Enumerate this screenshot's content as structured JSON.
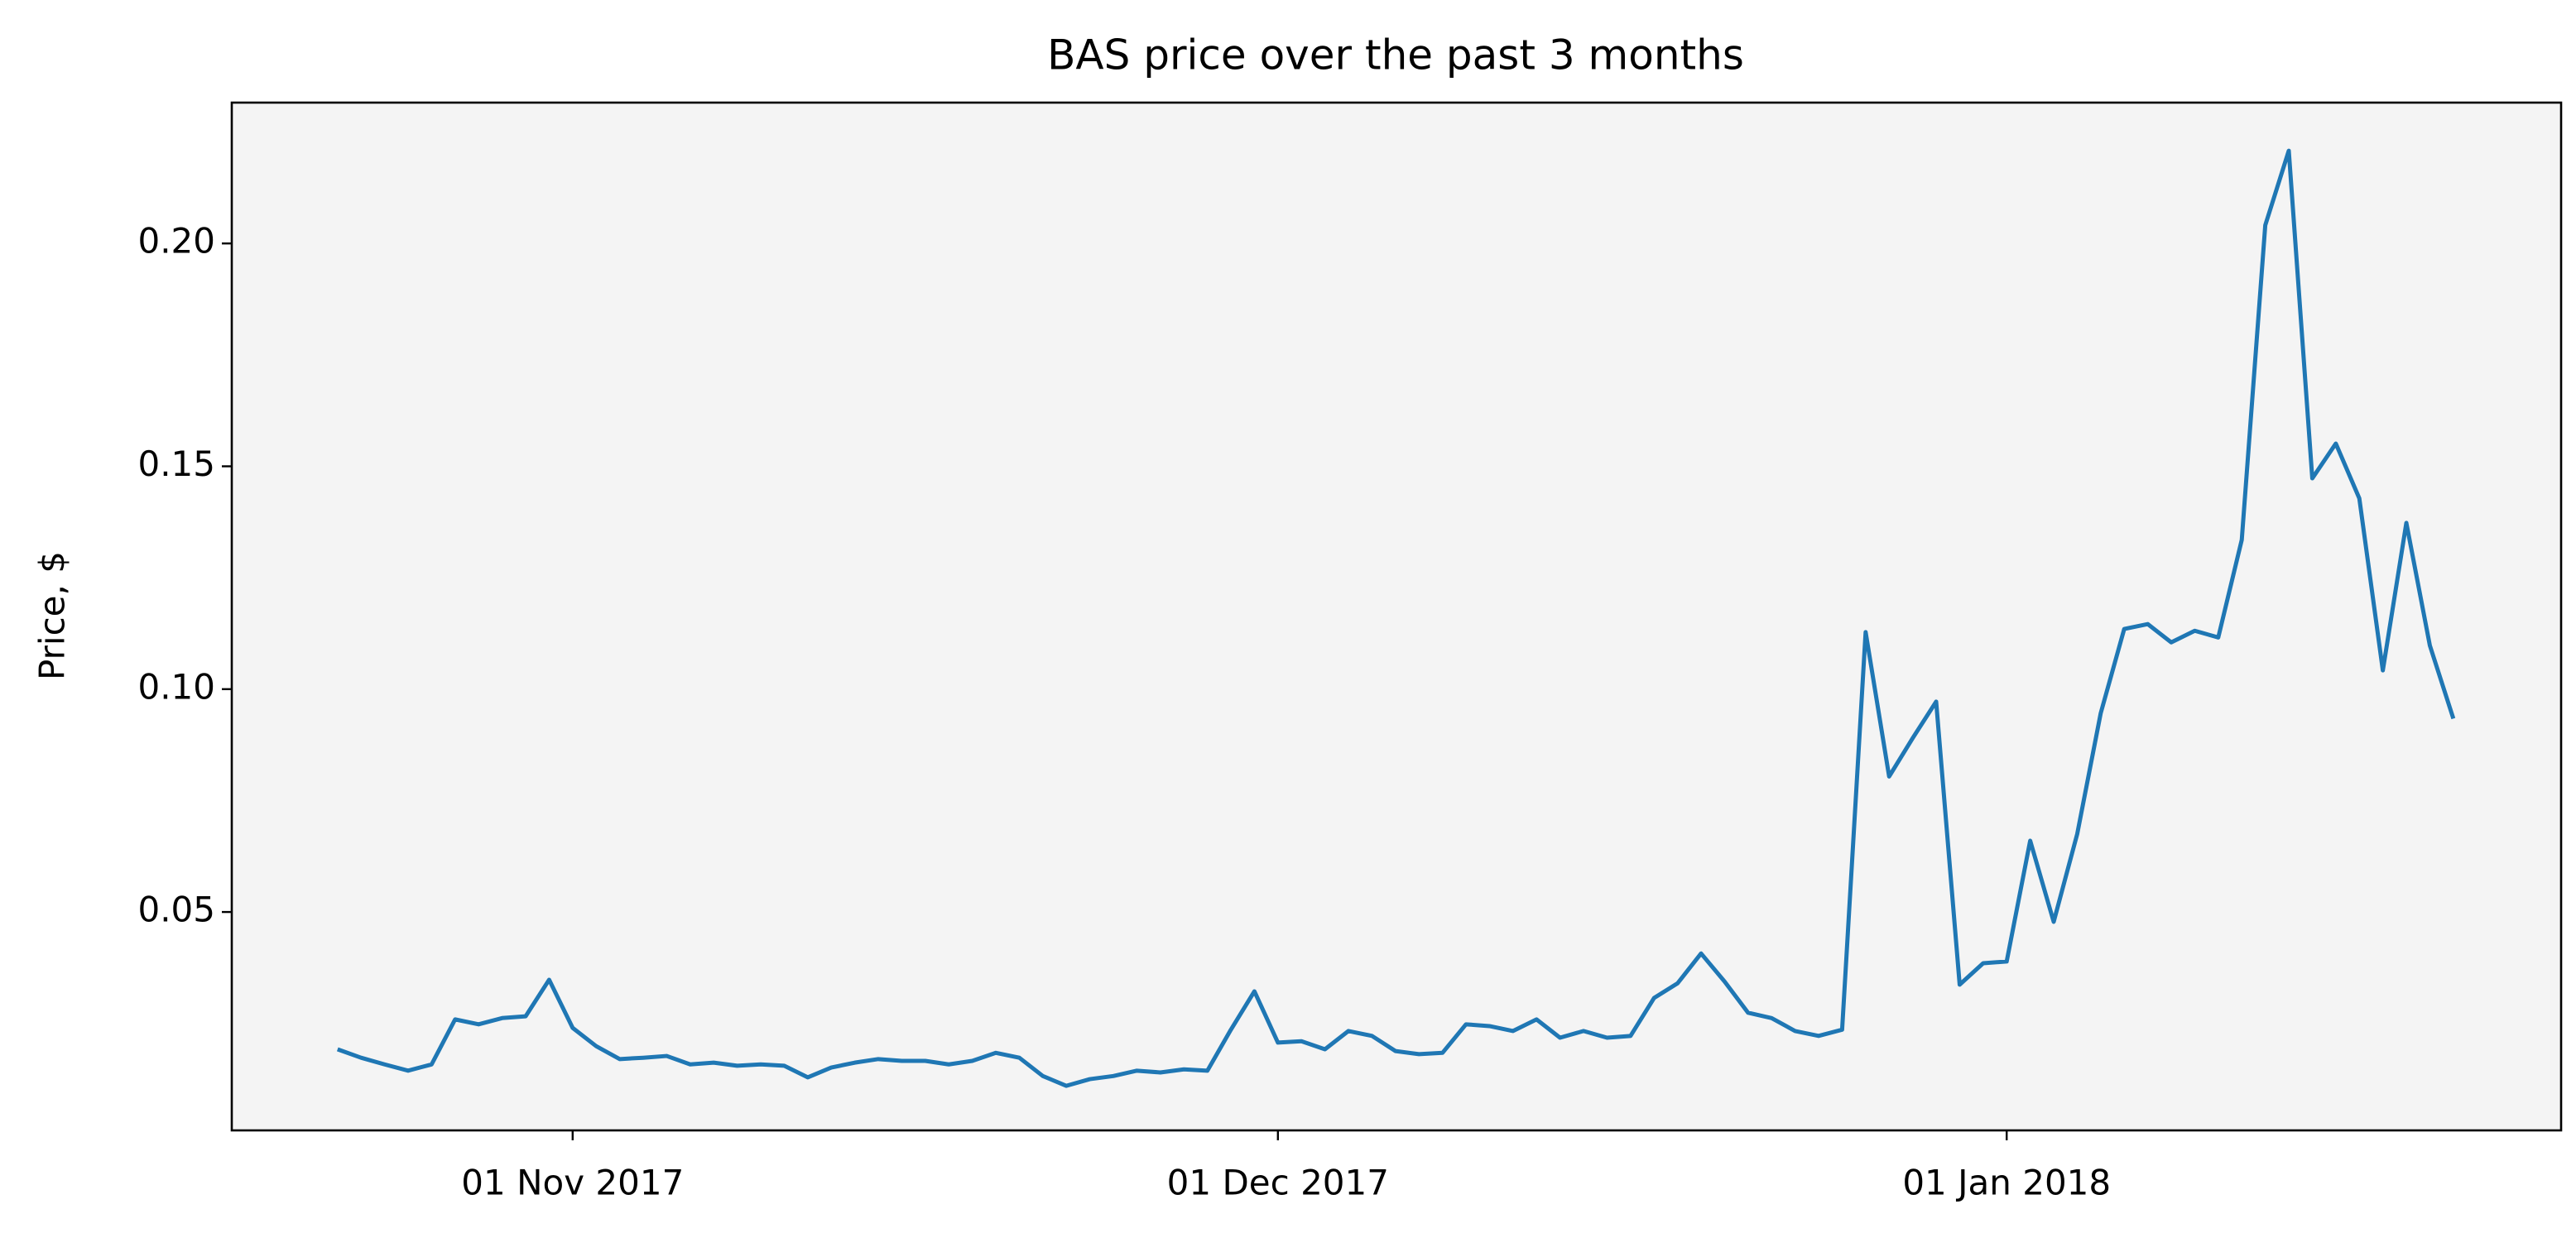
{
  "chart_data": {
    "type": "line",
    "title": "BAS price over the past 3 months",
    "y_label": "Price, $",
    "x": [
      "2017-10-22",
      "2017-10-23",
      "2017-10-24",
      "2017-10-25",
      "2017-10-26",
      "2017-10-27",
      "2017-10-28",
      "2017-10-29",
      "2017-10-30",
      "2017-10-31",
      "2017-11-01",
      "2017-11-02",
      "2017-11-03",
      "2017-11-04",
      "2017-11-05",
      "2017-11-06",
      "2017-11-07",
      "2017-11-08",
      "2017-11-09",
      "2017-11-10",
      "2017-11-11",
      "2017-11-12",
      "2017-11-13",
      "2017-11-14",
      "2017-11-15",
      "2017-11-16",
      "2017-11-17",
      "2017-11-18",
      "2017-11-19",
      "2017-11-20",
      "2017-11-21",
      "2017-11-22",
      "2017-11-23",
      "2017-11-24",
      "2017-11-25",
      "2017-11-26",
      "2017-11-27",
      "2017-11-28",
      "2017-11-29",
      "2017-11-30",
      "2017-12-01",
      "2017-12-02",
      "2017-12-03",
      "2017-12-04",
      "2017-12-05",
      "2017-12-06",
      "2017-12-07",
      "2017-12-08",
      "2017-12-09",
      "2017-12-10",
      "2017-12-11",
      "2017-12-12",
      "2017-12-13",
      "2017-12-14",
      "2017-12-15",
      "2017-12-16",
      "2017-12-17",
      "2017-12-18",
      "2017-12-19",
      "2017-12-20",
      "2017-12-21",
      "2017-12-22",
      "2017-12-23",
      "2017-12-24",
      "2017-12-25",
      "2017-12-26",
      "2017-12-27",
      "2017-12-28",
      "2017-12-29",
      "2017-12-30",
      "2017-12-31",
      "2018-01-01",
      "2018-01-02",
      "2018-01-03",
      "2018-01-04",
      "2018-01-05",
      "2018-01-06",
      "2018-01-07",
      "2018-01-08",
      "2018-01-09",
      "2018-01-10",
      "2018-01-11",
      "2018-01-12",
      "2018-01-13",
      "2018-01-14",
      "2018-01-15",
      "2018-01-16",
      "2018-01-17",
      "2018-01-18",
      "2018-01-19",
      "2018-01-20"
    ],
    "series": [
      {
        "name": "BAS",
        "color": "#1f77b4",
        "values": [
          0.0192,
          0.0173,
          0.0158,
          0.0144,
          0.0158,
          0.0259,
          0.0248,
          0.0262,
          0.0266,
          0.0348,
          0.024,
          0.0199,
          0.017,
          0.0173,
          0.0177,
          0.0158,
          0.0162,
          0.0155,
          0.0158,
          0.0155,
          0.0129,
          0.0151,
          0.0162,
          0.017,
          0.0166,
          0.0166,
          0.0158,
          0.0166,
          0.0184,
          0.0173,
          0.0132,
          0.011,
          0.0125,
          0.0132,
          0.0144,
          0.014,
          0.0147,
          0.0144,
          0.0236,
          0.0322,
          0.0207,
          0.021,
          0.0192,
          0.0233,
          0.0222,
          0.0188,
          0.0181,
          0.0184,
          0.0248,
          0.0244,
          0.0233,
          0.0259,
          0.0218,
          0.0233,
          0.0218,
          0.0222,
          0.0307,
          0.034,
          0.0407,
          0.0344,
          0.0274,
          0.0262,
          0.0233,
          0.0222,
          0.0236,
          0.1128,
          0.0804,
          0.089,
          0.0972,
          0.0337,
          0.0385,
          0.0389,
          0.066,
          0.0478,
          0.0675,
          0.0946,
          0.1135,
          0.1146,
          0.1105,
          0.1131,
          0.1116,
          0.1335,
          0.2041,
          0.2208,
          0.1473,
          0.1551,
          0.1428,
          0.1042,
          0.1373,
          0.1098,
          0.0934
        ]
      }
    ],
    "xlim": [
      "2017-10-17T12:00",
      "2018-01-24T14:00"
    ],
    "xticks": [
      {
        "value": "2017-11-01",
        "label": "01 Nov 2017"
      },
      {
        "value": "2017-12-01",
        "label": "01 Dec 2017"
      },
      {
        "value": "2018-01-01",
        "label": "01 Jan 2018"
      }
    ],
    "ylim": [
      0.001,
      0.2316
    ],
    "yticks": [
      0.05,
      {
        "value": 0.1,
        "label": "0.10"
      },
      0.15,
      {
        "value": 0.2,
        "label": "0.20"
      }
    ],
    "grid": false,
    "background": "#f4f4f4"
  }
}
